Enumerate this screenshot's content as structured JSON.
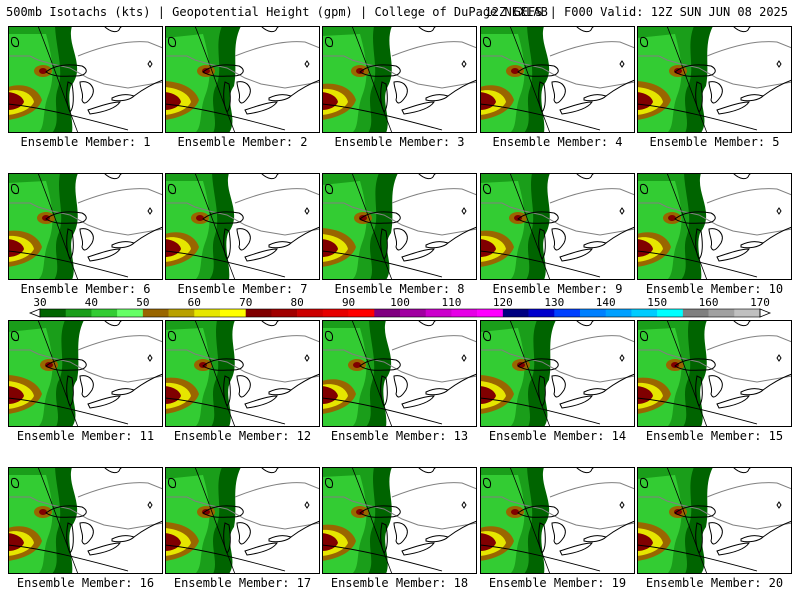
{
  "header": {
    "left": "500mb Isotachs (kts) | Geopotential Height (gpm) | College of DuPage NEXLAB",
    "right": "12Z GEFS | F000 Valid: 12Z SUN JUN 08 2025"
  },
  "panels": [
    {
      "label": "Ensemble Member: 1"
    },
    {
      "label": "Ensemble Member: 2"
    },
    {
      "label": "Ensemble Member: 3"
    },
    {
      "label": "Ensemble Member: 4"
    },
    {
      "label": "Ensemble Member: 5"
    },
    {
      "label": "Ensemble Member: 6"
    },
    {
      "label": "Ensemble Member: 7"
    },
    {
      "label": "Ensemble Member: 8"
    },
    {
      "label": "Ensemble Member: 9"
    },
    {
      "label": "Ensemble Member: 10"
    },
    {
      "label": "Ensemble Member: 11"
    },
    {
      "label": "Ensemble Member: 12"
    },
    {
      "label": "Ensemble Member: 13"
    },
    {
      "label": "Ensemble Member: 14"
    },
    {
      "label": "Ensemble Member: 15"
    },
    {
      "label": "Ensemble Member: 16"
    },
    {
      "label": "Ensemble Member: 17"
    },
    {
      "label": "Ensemble Member: 18"
    },
    {
      "label": "Ensemble Member: 19"
    },
    {
      "label": "Ensemble Member: 20"
    }
  ],
  "colorbar": {
    "labels": [
      "30",
      "40",
      "50",
      "60",
      "70",
      "80",
      "90",
      "100",
      "110",
      "120",
      "130",
      "140",
      "150",
      "160",
      "170"
    ],
    "colors": [
      "#006400",
      "#1a9e1a",
      "#33cc33",
      "#66ff66",
      "#996600",
      "#b8a000",
      "#e6e600",
      "#ffff00",
      "#800000",
      "#a00000",
      "#cc0000",
      "#e60000",
      "#ff0000",
      "#800080",
      "#a000a0",
      "#cc00cc",
      "#e600e6",
      "#ff00ff",
      "#000080",
      "#0000cc",
      "#0040ff",
      "#0080ff",
      "#00a0ff",
      "#00ccff",
      "#00ffff",
      "#808080",
      "#a0a0a0",
      "#c0c0c0"
    ]
  },
  "map_colors": {
    "speed_30": "#006400",
    "speed_40": "#1a9e1a",
    "speed_50": "#33cc33",
    "speed_60": "#996600",
    "speed_70": "#e6e600",
    "speed_80": "#800000",
    "coast": "#000000",
    "border": "#808080"
  }
}
